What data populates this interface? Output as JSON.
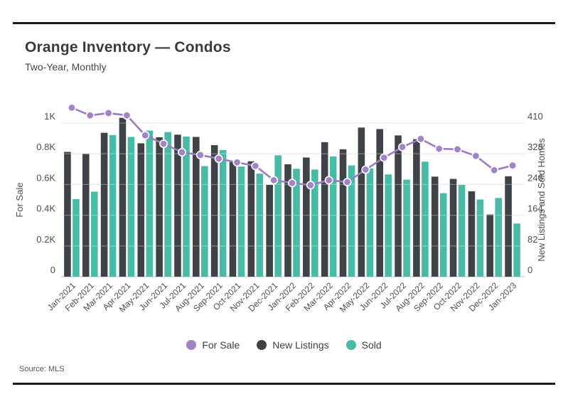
{
  "header": {
    "title": "Orange Inventory — Condos",
    "subtitle": "Two-Year, Monthly"
  },
  "source": "Source: MLS",
  "legend": [
    {
      "label": "For Sale",
      "color": "#a183c6"
    },
    {
      "label": "New Listings",
      "color": "#3f4246"
    },
    {
      "label": "Sold",
      "color": "#48bba7"
    }
  ],
  "colors": {
    "line": "#9a7cc0",
    "dot_fill": "#a183c6",
    "dot_ring": "#ffffff",
    "bar_dark": "#3f4246",
    "bar_teal": "#48bba7",
    "grid": "#e2e2e2",
    "grid_overlay": "rgba(255,255,255,0.30)",
    "axis_text": "#4d4d4f",
    "baseline": "#c9c9c9",
    "rule": "#1b1b1f"
  },
  "chart_data": {
    "type": "bar",
    "subtype": "grouped-bars-with-line",
    "title": "Orange Inventory — Condos",
    "subtitle": "Two-Year, Monthly",
    "categories": [
      "Jan-2021",
      "Feb-2021",
      "Mar-2021",
      "Apr-2021",
      "May-2021",
      "Jun-2021",
      "Jul-2021",
      "Aug-2021",
      "Sep-2021",
      "Oct-2021",
      "Nov-2021",
      "Dec-2021",
      "Jan-2022",
      "Feb-2022",
      "Mar-2022",
      "Apr-2022",
      "May-2022",
      "Jun-2022",
      "Jul-2022",
      "Aug-2022",
      "Sep-2022",
      "Oct-2022",
      "Nov-2022",
      "Dec-2022",
      "Jan-2023"
    ],
    "series": [
      {
        "name": "For Sale",
        "type": "line",
        "axis": "left",
        "values": [
          1100,
          1050,
          1065,
          1050,
          920,
          865,
          810,
          792,
          768,
          744,
          721,
          628,
          610,
          596,
          628,
          616,
          697,
          775,
          844,
          897,
          833,
          829,
          786,
          693,
          724
        ]
      },
      {
        "name": "New Listings",
        "type": "bar",
        "axis": "right",
        "values": [
          333,
          328,
          384,
          424,
          356,
          372,
          379,
          373,
          351,
          306,
          308,
          245,
          300,
          318,
          359,
          340,
          398,
          394,
          377,
          367,
          267,
          261,
          228,
          166,
          268
        ]
      },
      {
        "name": "Sold",
        "type": "bar",
        "axis": "right",
        "values": [
          207,
          227,
          378,
          373,
          390,
          386,
          374,
          295,
          338,
          294,
          275,
          324,
          288,
          286,
          321,
          297,
          289,
          273,
          259,
          307,
          223,
          245,
          206,
          210,
          142
        ]
      }
    ],
    "left_axis": {
      "label": "For Sale",
      "range": [
        0,
        1000
      ],
      "tick_values": [
        0,
        200,
        400,
        600,
        800,
        1000
      ],
      "tick_labels": [
        "0",
        "0.2K",
        "0.4K",
        "0.6K",
        "0.8K",
        "1K"
      ]
    },
    "right_axis": {
      "label": "New Listings and Sold Homes",
      "range": [
        0,
        410
      ],
      "tick_values": [
        0,
        82,
        164,
        246,
        328,
        410
      ],
      "tick_labels": [
        "0",
        "82",
        "164",
        "246",
        "328",
        "410"
      ]
    },
    "grid": true,
    "legend_position": "bottom"
  }
}
